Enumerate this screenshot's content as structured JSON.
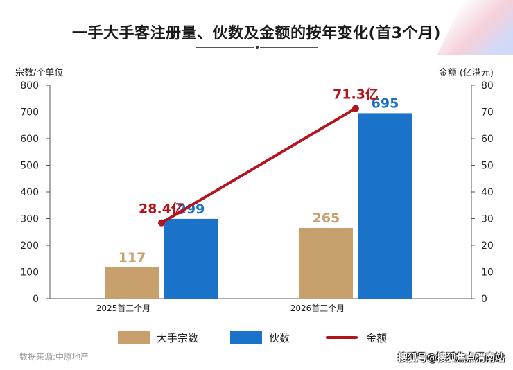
{
  "title": "一手大手客注册量、伙数及金额的按年变化(首3个月)",
  "source": "数据来源:中原地产",
  "watermark": "搜狐号@搜狐焦点渭南站",
  "colors": {
    "bar_primary": "#c8a06e",
    "bar_secondary": "#1a73c8",
    "line": "#b3141e",
    "axis": "#555555",
    "text": "#222222"
  },
  "legend": [
    {
      "label": "大手宗数",
      "color": "#c8a06e",
      "kind": "bar"
    },
    {
      "label": "伙数",
      "color": "#1a73c8",
      "kind": "bar"
    },
    {
      "label": "金额",
      "color": "#b3141e",
      "kind": "line"
    }
  ],
  "chart_data": {
    "type": "bar",
    "categories": [
      "2025首三个月",
      "2026首三个月"
    ],
    "series": [
      {
        "name": "大手宗数",
        "kind": "bar",
        "axis": "left",
        "values": [
          117,
          265
        ],
        "labels": [
          "117",
          "265"
        ]
      },
      {
        "name": "伙数",
        "kind": "bar",
        "axis": "left",
        "values": [
          299,
          695
        ],
        "labels": [
          "299",
          "695"
        ]
      },
      {
        "name": "金额",
        "kind": "line",
        "axis": "right",
        "values": [
          28.4,
          71.3
        ],
        "labels": [
          "28.4亿",
          "71.3亿"
        ]
      }
    ],
    "ylabel": "宗数/个单位",
    "y2label": "金额 (亿港元)",
    "ylim": [
      0,
      800
    ],
    "y2lim": [
      0,
      80
    ],
    "yticks": [
      "0",
      "100",
      "200",
      "300",
      "400",
      "500",
      "600",
      "700",
      "800"
    ],
    "y2ticks": [
      "0",
      "10",
      "20",
      "30",
      "40",
      "50",
      "60",
      "70",
      "80"
    ],
    "grid": false,
    "legend_position": "bottom"
  }
}
